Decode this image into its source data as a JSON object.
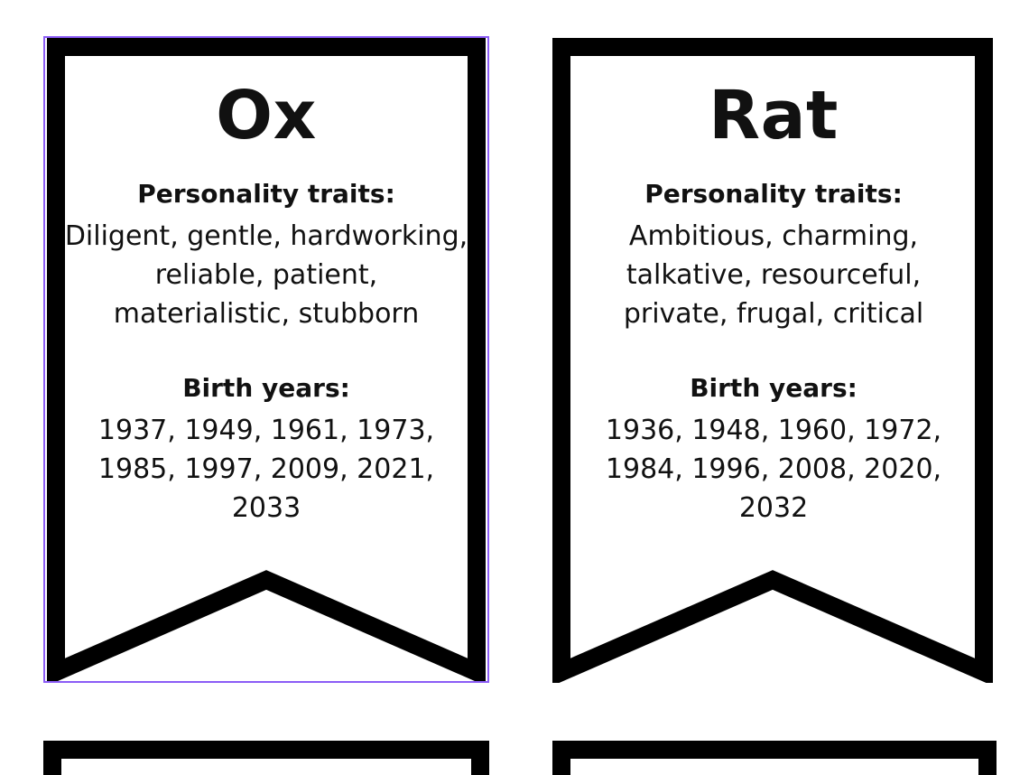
{
  "cards": [
    {
      "title": "Ox",
      "traits_label": "Personality traits:",
      "traits_lines": [
        "Diligent, gentle, hardworking,",
        "reliable, patient,",
        "materialistic, stubborn"
      ],
      "years_label": "Birth years:",
      "years_lines": [
        "1937, 1949, 1961, 1973,",
        "1985, 1997, 2009, 2021,",
        "2033"
      ]
    },
    {
      "title": "Rat",
      "traits_label": "Personality traits:",
      "traits_lines": [
        "Ambitious, charming,",
        "talkative, resourceful,",
        "private, frugal, critical"
      ],
      "years_label": "Birth years:",
      "years_lines": [
        "1936, 1948, 1960, 1972,",
        "1984, 1996, 2008, 2020,",
        "2032"
      ]
    }
  ],
  "colors": {
    "banner_outline": "#000000",
    "selection_outline": "#8b5cf6",
    "background": "#ffffff"
  }
}
